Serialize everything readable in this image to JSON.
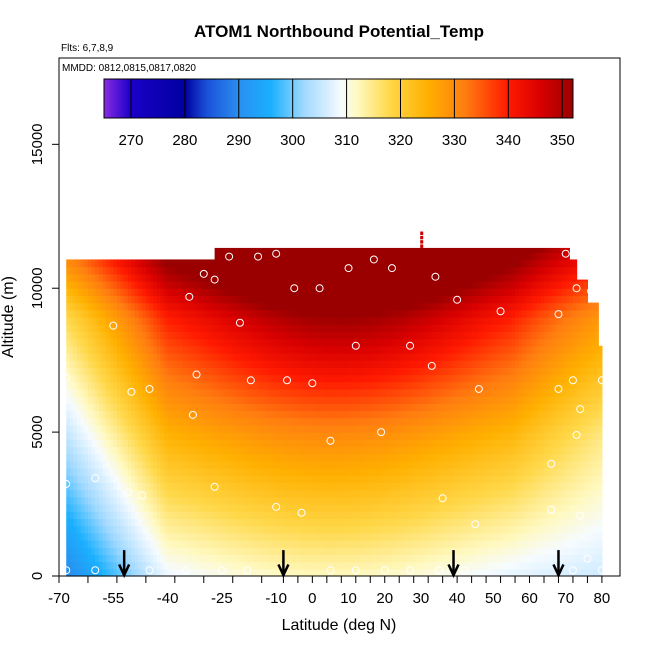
{
  "chart_data": {
    "type": "heatmap",
    "title": "ATOM1 Northbound Potential_Temp",
    "flights_label": "Flts: 6,7,8,9",
    "dates_label": "MMDD: 0812,0815,0817,0820",
    "xlabel": "Latitude (deg N)",
    "ylabel": "Altitude (m)",
    "xlim": [
      -70,
      85
    ],
    "ylim": [
      0,
      18000
    ],
    "x_tick_labels": [
      "-70",
      "-55",
      "-40",
      "-25",
      "-10",
      "0",
      "10",
      "20",
      "30",
      "40",
      "50",
      "60",
      "70",
      "80"
    ],
    "x_tick_values": [
      -70,
      -55,
      -40,
      -25,
      -10,
      0,
      10,
      20,
      30,
      40,
      50,
      60,
      70,
      80
    ],
    "x_tick_display_positions": [
      -70,
      -62,
      -54,
      -46,
      -38,
      -30,
      -22,
      -14,
      -8,
      -4,
      0,
      4,
      8,
      12,
      16,
      20,
      24,
      28,
      32,
      36,
      40,
      44,
      48,
      52,
      56,
      60,
      64,
      68,
      72,
      76,
      80
    ],
    "y_ticks": [
      0,
      5000,
      10000,
      15000
    ],
    "y_tick_labels": [
      "0",
      "5000",
      "10000",
      "15000"
    ],
    "colorbar": {
      "min": 265,
      "max": 352,
      "ticks": [
        270,
        280,
        290,
        300,
        310,
        320,
        330,
        340,
        350
      ],
      "tick_labels": [
        "270",
        "280",
        "290",
        "300",
        "310",
        "320",
        "330",
        "340",
        "350"
      ],
      "stops": [
        {
          "value": 265,
          "color": "#8a2be2"
        },
        {
          "value": 270,
          "color": "#1a00c8"
        },
        {
          "value": 280,
          "color": "#0000a0"
        },
        {
          "value": 284,
          "color": "#1a50d8"
        },
        {
          "value": 290,
          "color": "#2a8ff0"
        },
        {
          "value": 296,
          "color": "#1ab0ff"
        },
        {
          "value": 302,
          "color": "#9fd8ff"
        },
        {
          "value": 309,
          "color": "#f6fbff"
        },
        {
          "value": 312,
          "color": "#fff9c0"
        },
        {
          "value": 318,
          "color": "#ffd84a"
        },
        {
          "value": 325,
          "color": "#ffb000"
        },
        {
          "value": 332,
          "color": "#ff7d10"
        },
        {
          "value": 340,
          "color": "#ff1a00"
        },
        {
          "value": 346,
          "color": "#d80000"
        },
        {
          "value": 352,
          "color": "#9a0000"
        }
      ]
    },
    "field_extent": {
      "lat_min": -68,
      "lat_max": 80,
      "alt_min": 0,
      "alt_max": 11400
    },
    "profile_arrows_lat": [
      -52,
      -8,
      39,
      68
    ],
    "sample_points": [
      {
        "lat": -68,
        "alt": 200
      },
      {
        "lat": -60,
        "alt": 200
      },
      {
        "lat": -45,
        "alt": 200
      },
      {
        "lat": -35,
        "alt": 200
      },
      {
        "lat": -25,
        "alt": 200
      },
      {
        "lat": -18,
        "alt": 200
      },
      {
        "lat": 5,
        "alt": 200
      },
      {
        "lat": 12,
        "alt": 200
      },
      {
        "lat": 20,
        "alt": 200
      },
      {
        "lat": 27,
        "alt": 200
      },
      {
        "lat": 35,
        "alt": 200
      },
      {
        "lat": 42,
        "alt": 200
      },
      {
        "lat": 72,
        "alt": 200
      },
      {
        "lat": 80,
        "alt": 200
      },
      {
        "lat": -68,
        "alt": 3200
      },
      {
        "lat": -60,
        "alt": 3400
      },
      {
        "lat": -51,
        "alt": 2900
      },
      {
        "lat": -47,
        "alt": 2800
      },
      {
        "lat": -45,
        "alt": 6500
      },
      {
        "lat": -50,
        "alt": 6400
      },
      {
        "lat": -55,
        "alt": 8700
      },
      {
        "lat": -68,
        "alt": 6900
      },
      {
        "lat": -33,
        "alt": 5600
      },
      {
        "lat": -32,
        "alt": 7000
      },
      {
        "lat": -34,
        "alt": 9700
      },
      {
        "lat": -30,
        "alt": 10500
      },
      {
        "lat": -27,
        "alt": 10300
      },
      {
        "lat": -20,
        "alt": 8800
      },
      {
        "lat": -17,
        "alt": 6800
      },
      {
        "lat": -23,
        "alt": 11100
      },
      {
        "lat": -15,
        "alt": 11100
      },
      {
        "lat": -10,
        "alt": 11200
      },
      {
        "lat": -5,
        "alt": 10000
      },
      {
        "lat": 2,
        "alt": 10000
      },
      {
        "lat": 10,
        "alt": 10700
      },
      {
        "lat": 17,
        "alt": 11000
      },
      {
        "lat": 22,
        "alt": 10700
      },
      {
        "lat": -7,
        "alt": 6800
      },
      {
        "lat": 0,
        "alt": 6700
      },
      {
        "lat": 12,
        "alt": 8000
      },
      {
        "lat": 27,
        "alt": 8000
      },
      {
        "lat": 33,
        "alt": 7300
      },
      {
        "lat": 34,
        "alt": 10400
      },
      {
        "lat": 40,
        "alt": 9600
      },
      {
        "lat": 46,
        "alt": 6500
      },
      {
        "lat": 52,
        "alt": 9200
      },
      {
        "lat": 5,
        "alt": 4700
      },
      {
        "lat": 19,
        "alt": 5000
      },
      {
        "lat": -27,
        "alt": 3100
      },
      {
        "lat": -10,
        "alt": 2400
      },
      {
        "lat": -3,
        "alt": 2200
      },
      {
        "lat": 36,
        "alt": 2700
      },
      {
        "lat": 45,
        "alt": 1800
      },
      {
        "lat": 66,
        "alt": 3900
      },
      {
        "lat": 66,
        "alt": 2300
      },
      {
        "lat": 74,
        "alt": 2100
      },
      {
        "lat": 73,
        "alt": 4900
      },
      {
        "lat": 74,
        "alt": 5800
      },
      {
        "lat": 72,
        "alt": 6800
      },
      {
        "lat": 68,
        "alt": 6500
      },
      {
        "lat": 80,
        "alt": 6800
      },
      {
        "lat": 70,
        "alt": 11200
      },
      {
        "lat": 73,
        "alt": 10000
      },
      {
        "lat": 77,
        "alt": 9900
      },
      {
        "lat": 68,
        "alt": 9100
      },
      {
        "lat": 76,
        "alt": 600
      }
    ]
  }
}
